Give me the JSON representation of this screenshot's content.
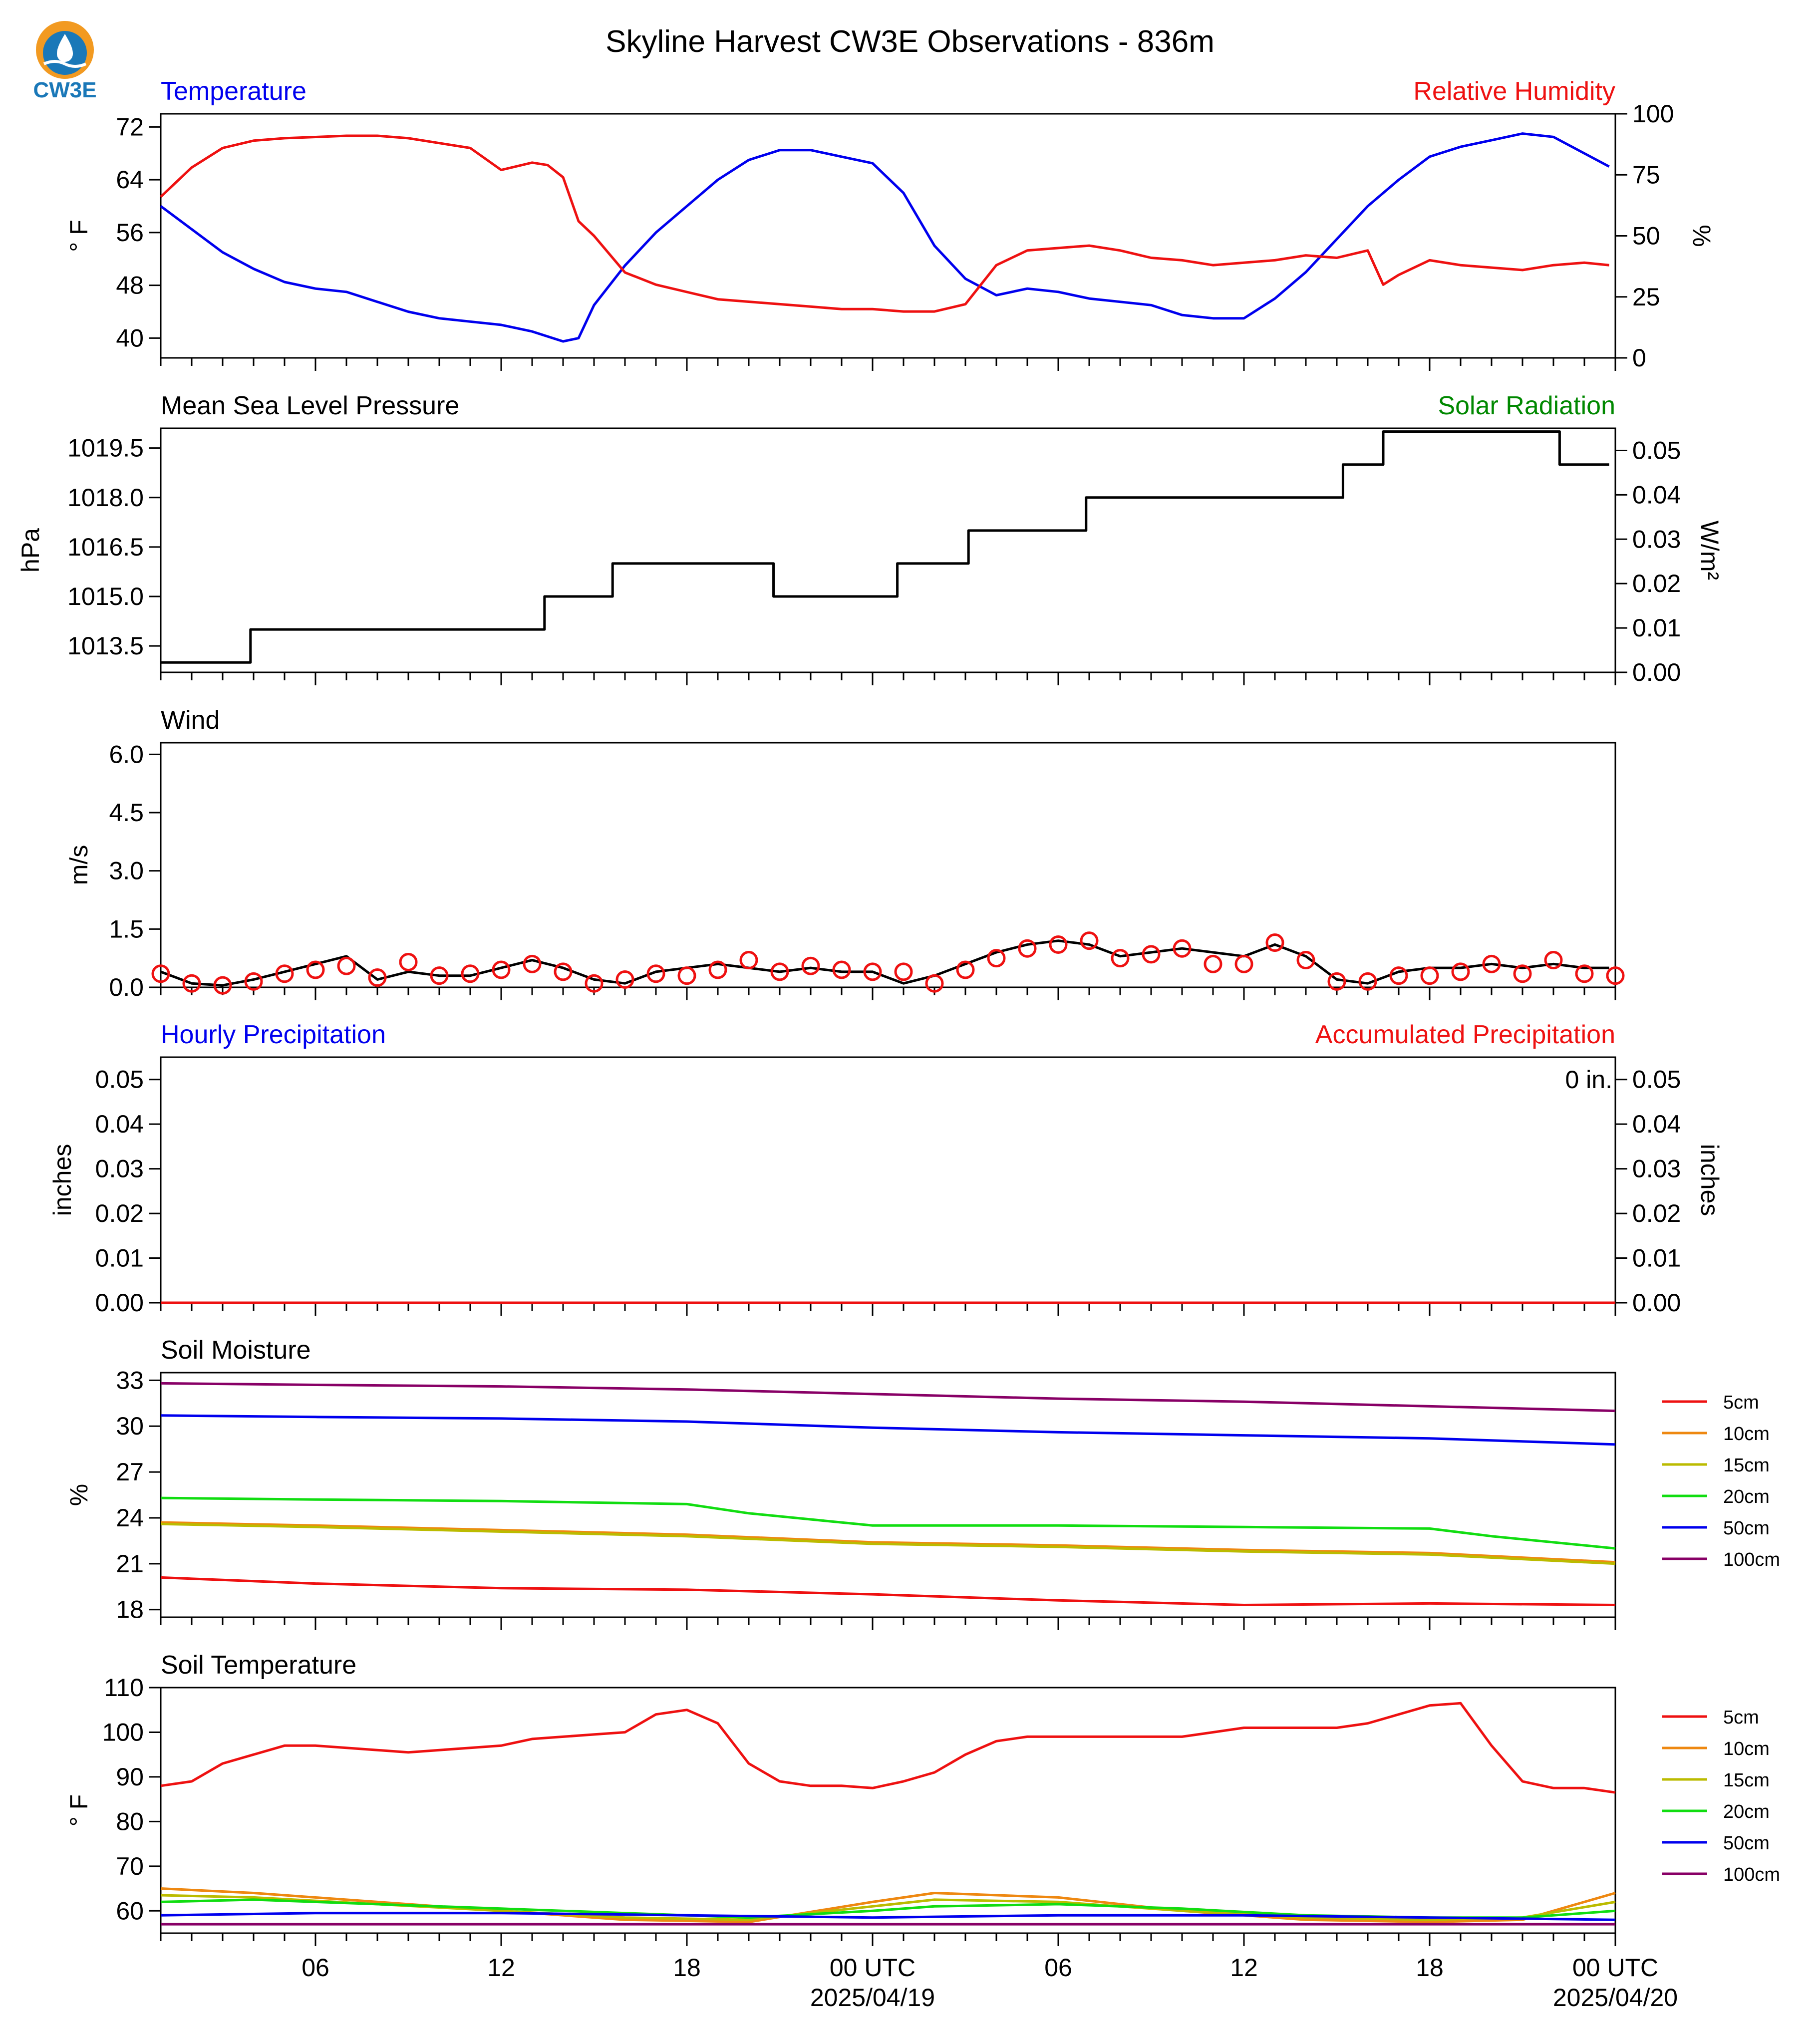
{
  "figure": {
    "title": "Skyline Harvest CW3E Observations - 836m",
    "logo_text": "CW3E",
    "colors": {
      "blue": "#0000ee",
      "red": "#ee1111",
      "green": "#008800",
      "black": "#000000"
    }
  },
  "x_axis": {
    "tick_labels": [
      "06",
      "12",
      "18",
      "00 UTC",
      "06",
      "12",
      "18",
      "00 UTC"
    ],
    "tick_hours": [
      6,
      12,
      18,
      24,
      30,
      36,
      42,
      48
    ],
    "date_labels": [
      "2025/04/19",
      "2025/04/20"
    ],
    "range_hours": [
      1,
      48
    ]
  },
  "chart_data": [
    {
      "type": "line",
      "title_left": "Temperature",
      "title_right": "Relative Humidity",
      "ylabel_left": "° F",
      "ylabel_right": "%",
      "ylim_left": [
        37,
        74
      ],
      "ylim_right": [
        0,
        100
      ],
      "yticks_left": [
        40,
        48,
        56,
        64,
        72
      ],
      "yticks_right": [
        0,
        25,
        50,
        75,
        100
      ],
      "series": [
        {
          "axis": "left",
          "color": "#0000ee",
          "x": [
            1,
            2,
            3,
            4,
            5,
            6,
            7,
            8,
            9,
            10,
            11,
            12,
            13,
            14,
            14.5,
            15,
            16,
            17,
            18,
            19,
            20,
            21,
            22,
            23,
            24,
            25,
            26,
            27,
            28,
            29,
            30,
            31,
            32,
            33,
            34,
            35,
            36,
            37,
            38,
            39,
            40,
            41,
            42,
            43,
            44,
            45,
            46,
            47,
            47.8
          ],
          "y": [
            60,
            56.5,
            53,
            50.5,
            48.5,
            47.5,
            47,
            45.5,
            44,
            43,
            42.5,
            42,
            41,
            39.5,
            40,
            45,
            51,
            56,
            60,
            64,
            67,
            68.5,
            68.5,
            67.5,
            66.5,
            62,
            54,
            49,
            46.5,
            47.5,
            47,
            46,
            45.5,
            45,
            43.5,
            43,
            43,
            46,
            50,
            55,
            60,
            64,
            67.5,
            69,
            70,
            71,
            70.5,
            68,
            66
          ]
        },
        {
          "axis": "right",
          "color": "#ee1111",
          "x": [
            1,
            2,
            3,
            4,
            5,
            6,
            7,
            8,
            9,
            10,
            11,
            12,
            13,
            13.5,
            14,
            14.5,
            15,
            16,
            17,
            18,
            19,
            20,
            21,
            22,
            23,
            24,
            25,
            26,
            27,
            28,
            29,
            30,
            31,
            32,
            33,
            34,
            35,
            36,
            37,
            38,
            39,
            40,
            40.5,
            41,
            42,
            43,
            44,
            45,
            46,
            47,
            47.8
          ],
          "y": [
            66,
            78,
            86,
            89,
            90,
            90.5,
            91,
            91,
            90,
            88,
            86,
            77,
            80,
            79,
            74,
            56,
            50,
            35,
            30,
            27,
            24,
            23,
            22,
            21,
            20,
            20,
            19,
            19,
            22,
            38,
            44,
            45,
            46,
            44,
            41,
            40,
            38,
            39,
            40,
            42,
            41,
            44,
            30,
            34,
            40,
            38,
            37,
            36,
            38,
            39,
            38
          ]
        }
      ]
    },
    {
      "type": "line",
      "title_left": "Mean Sea Level Pressure",
      "title_right": "Solar Radiation",
      "ylabel_left": "hPa",
      "ylabel_right": "W/m²",
      "ylim_left": [
        1012.7,
        1020.1
      ],
      "ylim_right": [
        0,
        0.055
      ],
      "yticks_left": [
        1013.5,
        1015.0,
        1016.5,
        1018.0,
        1019.5
      ],
      "yticks_right": [
        0.0,
        0.01,
        0.02,
        0.03,
        0.04,
        0.05
      ],
      "yticklabels_left": [
        "1013.5",
        "1015.0",
        "1016.5",
        "1018.0",
        "1019.5"
      ],
      "yticklabels_right": [
        "0.00",
        "0.01",
        "0.02",
        "0.03",
        "0.04",
        "0.05"
      ],
      "series": [
        {
          "axis": "left",
          "color": "#000000",
          "step": true,
          "x": [
            1,
            3.9,
            10.2,
            13.4,
            15.6,
            20.8,
            24.8,
            27.1,
            30.9,
            35.6,
            39.2,
            40.5,
            46.2,
            47.8
          ],
          "y": [
            1013.0,
            1014.0,
            1014.0,
            1015.0,
            1016.0,
            1015.0,
            1016.0,
            1017.0,
            1018.0,
            1018.0,
            1019.0,
            1020.0,
            1019.0,
            1019.0
          ]
        }
      ]
    },
    {
      "type": "line",
      "title_left": "Wind",
      "ylabel_left": "m/s",
      "ylim_left": [
        0,
        6.3
      ],
      "yticks_left": [
        0.0,
        1.5,
        3.0,
        4.5,
        6.0
      ],
      "yticklabels_left": [
        "0.0",
        "1.5",
        "3.0",
        "4.5",
        "6.0"
      ],
      "series": [
        {
          "axis": "left",
          "color": "#000000",
          "x": [
            1,
            2,
            3,
            4,
            5,
            6,
            7,
            8,
            9,
            10,
            11,
            12,
            13,
            14,
            15,
            16,
            17,
            18,
            19,
            20,
            21,
            22,
            23,
            24,
            25,
            26,
            27,
            28,
            29,
            30,
            31,
            32,
            33,
            34,
            35,
            36,
            37,
            38,
            39,
            40,
            41,
            42,
            43,
            44,
            45,
            46,
            47,
            47.8
          ],
          "y": [
            0.4,
            0.1,
            0.05,
            0.2,
            0.4,
            0.6,
            0.8,
            0.2,
            0.4,
            0.3,
            0.3,
            0.5,
            0.7,
            0.5,
            0.2,
            0.1,
            0.4,
            0.5,
            0.6,
            0.5,
            0.4,
            0.5,
            0.4,
            0.4,
            0.1,
            0.3,
            0.6,
            0.9,
            1.1,
            1.2,
            1.1,
            0.8,
            0.9,
            1.0,
            0.9,
            0.8,
            1.1,
            0.8,
            0.2,
            0.1,
            0.4,
            0.5,
            0.5,
            0.6,
            0.5,
            0.6,
            0.5,
            0.5
          ]
        },
        {
          "axis": "left",
          "color": "#ee1111",
          "marker": "circle",
          "x": [
            1,
            2,
            3,
            4,
            5,
            6,
            7,
            8,
            9,
            10,
            11,
            12,
            13,
            14,
            15,
            16,
            17,
            18,
            19,
            20,
            21,
            22,
            23,
            24,
            25,
            26,
            27,
            28,
            29,
            30,
            31,
            32,
            33,
            34,
            35,
            36,
            37,
            38,
            39,
            40,
            41,
            42,
            43,
            44,
            45,
            46,
            47,
            48
          ],
          "y": [
            0.35,
            0.1,
            0.05,
            0.15,
            0.35,
            0.45,
            0.55,
            0.25,
            0.65,
            0.3,
            0.35,
            0.45,
            0.6,
            0.4,
            0.1,
            0.2,
            0.35,
            0.3,
            0.45,
            0.7,
            0.4,
            0.55,
            0.45,
            0.4,
            0.4,
            0.1,
            0.45,
            0.75,
            1.0,
            1.1,
            1.2,
            0.75,
            0.85,
            1.0,
            0.6,
            0.6,
            1.15,
            0.7,
            0.15,
            0.15,
            0.3,
            0.3,
            0.4,
            0.6,
            0.35,
            0.7,
            0.35,
            0.3
          ]
        }
      ]
    },
    {
      "type": "line",
      "title_left": "Hourly Precipitation",
      "title_right": "Accumulated Precipitation",
      "annotation": "0 in.",
      "ylabel_left": "inches",
      "ylabel_right": "inches",
      "ylim_left": [
        0,
        0.055
      ],
      "ylim_right": [
        0,
        0.055
      ],
      "yticks_left": [
        0.0,
        0.01,
        0.02,
        0.03,
        0.04,
        0.05
      ],
      "yticklabels_left": [
        "0.00",
        "0.01",
        "0.02",
        "0.03",
        "0.04",
        "0.05"
      ],
      "yticks_right": [
        0.0,
        0.01,
        0.02,
        0.03,
        0.04,
        0.05
      ],
      "yticklabels_right": [
        "0.00",
        "0.01",
        "0.02",
        "0.03",
        "0.04",
        "0.05"
      ],
      "series": [
        {
          "axis": "left",
          "color": "#ee1111",
          "x": [
            1,
            48
          ],
          "y": [
            0,
            0
          ]
        }
      ]
    },
    {
      "type": "line",
      "title_left": "Soil Moisture",
      "ylabel_left": "%",
      "ylim_left": [
        17.5,
        33.5
      ],
      "yticks_left": [
        18,
        21,
        24,
        27,
        30,
        33
      ],
      "legend": [
        "5cm",
        "10cm",
        "15cm",
        "20cm",
        "50cm",
        "100cm"
      ],
      "series": [
        {
          "name": "5cm",
          "color": "#ee1111",
          "x": [
            1,
            6,
            12,
            18,
            24,
            30,
            36,
            42,
            48
          ],
          "y": [
            20.1,
            19.7,
            19.4,
            19.3,
            19.0,
            18.6,
            18.3,
            18.4,
            18.3
          ]
        },
        {
          "name": "10cm",
          "color": "#ee8811",
          "x": [
            1,
            6,
            12,
            18,
            24,
            30,
            36,
            42,
            48
          ],
          "y": [
            23.7,
            23.5,
            23.2,
            22.9,
            22.4,
            22.2,
            21.9,
            21.7,
            21.1
          ]
        },
        {
          "name": "15cm",
          "color": "#bbbb00",
          "x": [
            1,
            6,
            12,
            18,
            24,
            30,
            36,
            42,
            48
          ],
          "y": [
            23.6,
            23.4,
            23.1,
            22.8,
            22.3,
            22.1,
            21.8,
            21.6,
            21.0
          ]
        },
        {
          "name": "20cm",
          "color": "#11dd11",
          "x": [
            1,
            6,
            12,
            18,
            20,
            24,
            30,
            36,
            42,
            44,
            48
          ],
          "y": [
            25.3,
            25.2,
            25.1,
            24.9,
            24.3,
            23.5,
            23.5,
            23.4,
            23.3,
            22.8,
            22.0
          ]
        },
        {
          "name": "50cm",
          "color": "#0000ee",
          "x": [
            1,
            6,
            12,
            18,
            24,
            30,
            36,
            42,
            48
          ],
          "y": [
            30.7,
            30.6,
            30.5,
            30.3,
            29.9,
            29.6,
            29.4,
            29.2,
            28.8
          ]
        },
        {
          "name": "100cm",
          "color": "#880066",
          "x": [
            1,
            6,
            12,
            18,
            24,
            30,
            36,
            42,
            48
          ],
          "y": [
            32.8,
            32.7,
            32.6,
            32.4,
            32.1,
            31.8,
            31.6,
            31.3,
            31.0
          ]
        }
      ]
    },
    {
      "type": "line",
      "title_left": "Soil Temperature",
      "ylabel_left": "° F",
      "ylim_left": [
        55,
        110
      ],
      "yticks_left": [
        60,
        70,
        80,
        90,
        100,
        110
      ],
      "legend": [
        "5cm",
        "10cm",
        "15cm",
        "20cm",
        "50cm",
        "100cm"
      ],
      "series": [
        {
          "name": "5cm",
          "color": "#ee1111",
          "x": [
            1,
            2,
            3,
            4,
            5,
            6,
            7,
            8,
            9,
            10,
            11,
            12,
            13,
            14,
            15,
            16,
            17,
            18,
            19,
            20,
            21,
            22,
            23,
            24,
            25,
            26,
            27,
            28,
            29,
            30,
            31,
            32,
            33,
            34,
            35,
            36,
            37,
            38,
            39,
            40,
            41,
            42,
            43,
            44,
            45,
            46,
            47,
            48
          ],
          "y": [
            88,
            89,
            93,
            95,
            97,
            97,
            96.5,
            96,
            95.5,
            96,
            96.5,
            97,
            98.5,
            99,
            99.5,
            100,
            104,
            105,
            102,
            93,
            89,
            88,
            88,
            87.5,
            89,
            91,
            95,
            98,
            99,
            99,
            99,
            99,
            99,
            99,
            100,
            101,
            101,
            101,
            101,
            102,
            104,
            106,
            106.5,
            97,
            89,
            87.5,
            87.5,
            86.5
          ]
        },
        {
          "name": "10cm",
          "color": "#ee8811",
          "x": [
            1,
            4,
            8,
            12,
            16,
            20,
            24,
            26,
            30,
            34,
            38,
            42,
            45,
            48
          ],
          "y": [
            65,
            64,
            62,
            60,
            58,
            57.5,
            62,
            64,
            63,
            60,
            58,
            57.5,
            58,
            64
          ]
        },
        {
          "name": "15cm",
          "color": "#bbbb00",
          "x": [
            1,
            4,
            8,
            12,
            16,
            20,
            24,
            26,
            30,
            34,
            38,
            42,
            45,
            48
          ],
          "y": [
            63.5,
            63,
            61.5,
            60,
            58.5,
            58,
            61,
            62.5,
            62,
            60,
            58.5,
            58,
            58.5,
            62
          ]
        },
        {
          "name": "20cm",
          "color": "#11dd11",
          "x": [
            1,
            4,
            8,
            12,
            16,
            20,
            24,
            26,
            30,
            34,
            38,
            42,
            45,
            48
          ],
          "y": [
            62,
            62.5,
            61.5,
            60.5,
            59.5,
            58.5,
            60,
            61,
            61.5,
            60.5,
            59,
            58.5,
            58.5,
            60
          ]
        },
        {
          "name": "50cm",
          "color": "#0000ee",
          "x": [
            1,
            6,
            12,
            18,
            24,
            30,
            36,
            42,
            48
          ],
          "y": [
            59,
            59.5,
            59.5,
            59,
            58.5,
            59,
            59,
            58.5,
            58
          ]
        },
        {
          "name": "100cm",
          "color": "#880066",
          "x": [
            1,
            6,
            12,
            18,
            24,
            30,
            36,
            42,
            48
          ],
          "y": [
            57,
            57,
            57,
            57,
            57,
            57,
            57,
            57,
            57
          ]
        }
      ]
    }
  ]
}
